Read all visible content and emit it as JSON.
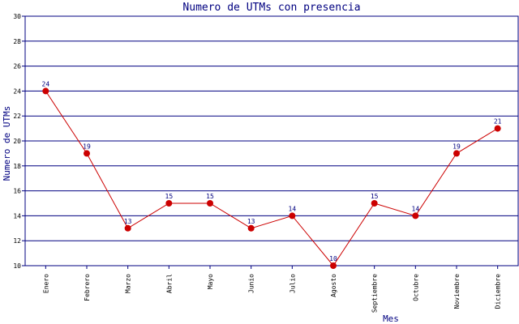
{
  "chart_data": {
    "type": "line",
    "title": "Numero de UTMs con presencia",
    "xlabel": "Mes",
    "ylabel": "Numero de UTMs",
    "categories": [
      "Enero",
      "Febrero",
      "Marzo",
      "Abril",
      "Mayo",
      "Junio",
      "Julio",
      "Agosto",
      "Septiembre",
      "Octubre",
      "Noviembre",
      "Diciembre"
    ],
    "values": [
      24,
      19,
      13,
      15,
      15,
      13,
      14,
      10,
      15,
      14,
      19,
      21
    ],
    "data_labels": [
      "24",
      "19",
      "13",
      "15",
      "15",
      "13",
      "14",
      "10",
      "15",
      "14",
      "19",
      "21"
    ],
    "ylim": [
      10,
      30
    ],
    "yticks": [
      "10",
      "12",
      "14",
      "16",
      "18",
      "20",
      "22",
      "24",
      "26",
      "28",
      "30"
    ],
    "grid": "horizontal",
    "colors": {
      "line": "#cc0000",
      "marker": "#cc0000",
      "grid": "#000080",
      "axis": "#000080",
      "text": "#000080"
    }
  }
}
